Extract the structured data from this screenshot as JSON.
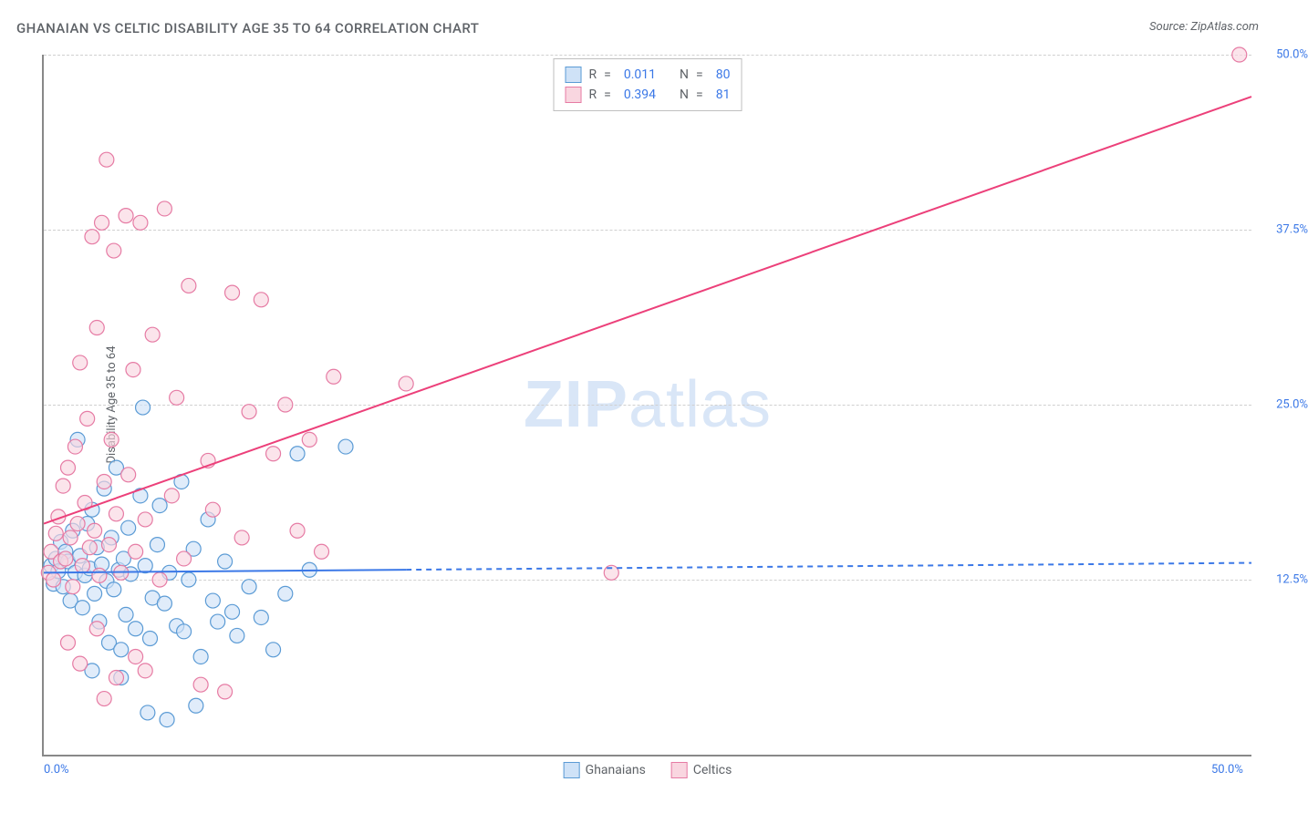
{
  "header": {
    "title": "GHANAIAN VS CELTIC DISABILITY AGE 35 TO 64 CORRELATION CHART",
    "source": "Source: ZipAtlas.com"
  },
  "chart": {
    "type": "scatter",
    "ylabel": "Disability Age 35 to 64",
    "watermark": "ZIPatlas",
    "xlim": [
      0,
      50
    ],
    "ylim": [
      0,
      50
    ],
    "x_tick_labels": [
      {
        "value": 0,
        "label": "0.0%"
      },
      {
        "value": 50,
        "label": "50.0%"
      }
    ],
    "y_tick_labels": [
      {
        "value": 12.5,
        "label": "12.5%"
      },
      {
        "value": 25.0,
        "label": "25.0%"
      },
      {
        "value": 37.5,
        "label": "37.5%"
      },
      {
        "value": 50.0,
        "label": "50.0%"
      }
    ],
    "gridlines_y": [
      12.5,
      25.0,
      37.5,
      50.0
    ],
    "series": [
      {
        "name": "Ghanaians",
        "fill_color": "#cfe2f7",
        "stroke_color": "#5b9bd5",
        "marker_radius": 8,
        "marker_fill_opacity": 0.65,
        "line_color": "#3b78e7",
        "line_width": 2,
        "solid_end_x": 15,
        "trendline": {
          "y0": 13.0,
          "y50": 13.7
        },
        "R": "0.011",
        "N": "80",
        "points": [
          [
            0.3,
            13.5
          ],
          [
            0.4,
            12.2
          ],
          [
            0.5,
            14.0
          ],
          [
            0.6,
            13.1
          ],
          [
            0.7,
            15.2
          ],
          [
            0.8,
            12.0
          ],
          [
            0.9,
            14.5
          ],
          [
            1.0,
            13.8
          ],
          [
            1.1,
            11.0
          ],
          [
            1.2,
            16.0
          ],
          [
            1.3,
            13.0
          ],
          [
            1.4,
            22.5
          ],
          [
            1.5,
            14.2
          ],
          [
            1.6,
            10.5
          ],
          [
            1.7,
            12.8
          ],
          [
            1.8,
            16.5
          ],
          [
            1.9,
            13.3
          ],
          [
            2.0,
            17.5
          ],
          [
            2.1,
            11.5
          ],
          [
            2.2,
            14.8
          ],
          [
            2.3,
            9.5
          ],
          [
            2.4,
            13.6
          ],
          [
            2.5,
            19.0
          ],
          [
            2.6,
            12.4
          ],
          [
            2.7,
            8.0
          ],
          [
            2.8,
            15.5
          ],
          [
            2.9,
            11.8
          ],
          [
            3.0,
            20.5
          ],
          [
            3.1,
            13.2
          ],
          [
            3.2,
            7.5
          ],
          [
            3.3,
            14.0
          ],
          [
            3.4,
            10.0
          ],
          [
            3.5,
            16.2
          ],
          [
            3.6,
            12.9
          ],
          [
            3.8,
            9.0
          ],
          [
            4.0,
            18.5
          ],
          [
            4.1,
            24.8
          ],
          [
            4.2,
            13.5
          ],
          [
            4.4,
            8.3
          ],
          [
            4.5,
            11.2
          ],
          [
            4.7,
            15.0
          ],
          [
            4.8,
            17.8
          ],
          [
            5.0,
            10.8
          ],
          [
            5.2,
            13.0
          ],
          [
            5.5,
            9.2
          ],
          [
            5.7,
            19.5
          ],
          [
            5.8,
            8.8
          ],
          [
            6.0,
            12.5
          ],
          [
            6.2,
            14.7
          ],
          [
            6.5,
            7.0
          ],
          [
            6.8,
            16.8
          ],
          [
            7.0,
            11.0
          ],
          [
            7.2,
            9.5
          ],
          [
            7.5,
            13.8
          ],
          [
            7.8,
            10.2
          ],
          [
            8.0,
            8.5
          ],
          [
            8.5,
            12.0
          ],
          [
            9.0,
            9.8
          ],
          [
            9.5,
            7.5
          ],
          [
            10.0,
            11.5
          ],
          [
            10.5,
            21.5
          ],
          [
            11.0,
            13.2
          ],
          [
            12.5,
            22.0
          ],
          [
            4.3,
            3.0
          ],
          [
            5.1,
            2.5
          ],
          [
            2.0,
            6.0
          ],
          [
            3.2,
            5.5
          ],
          [
            6.3,
            3.5
          ]
        ]
      },
      {
        "name": "Celtics",
        "fill_color": "#f9d6e0",
        "stroke_color": "#e67ba4",
        "marker_radius": 8,
        "marker_fill_opacity": 0.65,
        "line_color": "#ec407a",
        "line_width": 2,
        "solid_end_x": 50,
        "trendline": {
          "y0": 16.5,
          "y50": 47.0
        },
        "R": "0.394",
        "N": "81",
        "points": [
          [
            0.2,
            13.0
          ],
          [
            0.3,
            14.5
          ],
          [
            0.4,
            12.5
          ],
          [
            0.5,
            15.8
          ],
          [
            0.6,
            17.0
          ],
          [
            0.7,
            13.8
          ],
          [
            0.8,
            19.2
          ],
          [
            0.9,
            14.0
          ],
          [
            1.0,
            20.5
          ],
          [
            1.1,
            15.5
          ],
          [
            1.2,
            12.0
          ],
          [
            1.3,
            22.0
          ],
          [
            1.4,
            16.5
          ],
          [
            1.5,
            28.0
          ],
          [
            1.6,
            13.5
          ],
          [
            1.7,
            18.0
          ],
          [
            1.8,
            24.0
          ],
          [
            1.9,
            14.8
          ],
          [
            2.0,
            37.0
          ],
          [
            2.1,
            16.0
          ],
          [
            2.2,
            30.5
          ],
          [
            2.3,
            12.8
          ],
          [
            2.4,
            38.0
          ],
          [
            2.5,
            19.5
          ],
          [
            2.6,
            42.5
          ],
          [
            2.7,
            15.0
          ],
          [
            2.8,
            22.5
          ],
          [
            2.9,
            36.0
          ],
          [
            3.0,
            17.2
          ],
          [
            3.2,
            13.0
          ],
          [
            3.4,
            38.5
          ],
          [
            3.5,
            20.0
          ],
          [
            3.7,
            27.5
          ],
          [
            3.8,
            14.5
          ],
          [
            4.0,
            38.0
          ],
          [
            4.2,
            16.8
          ],
          [
            4.5,
            30.0
          ],
          [
            4.8,
            12.5
          ],
          [
            5.0,
            39.0
          ],
          [
            5.3,
            18.5
          ],
          [
            5.5,
            25.5
          ],
          [
            5.8,
            14.0
          ],
          [
            6.0,
            33.5
          ],
          [
            6.5,
            5.0
          ],
          [
            6.8,
            21.0
          ],
          [
            7.0,
            17.5
          ],
          [
            7.5,
            4.5
          ],
          [
            7.8,
            33.0
          ],
          [
            8.2,
            15.5
          ],
          [
            8.5,
            24.5
          ],
          [
            9.0,
            32.5
          ],
          [
            9.5,
            21.5
          ],
          [
            10.0,
            25.0
          ],
          [
            10.5,
            16.0
          ],
          [
            11.0,
            22.5
          ],
          [
            11.5,
            14.5
          ],
          [
            12.0,
            27.0
          ],
          [
            15.0,
            26.5
          ],
          [
            23.5,
            13.0
          ],
          [
            49.5,
            50.0
          ],
          [
            1.0,
            8.0
          ],
          [
            1.5,
            6.5
          ],
          [
            2.2,
            9.0
          ],
          [
            3.0,
            5.5
          ],
          [
            3.8,
            7.0
          ],
          [
            2.5,
            4.0
          ],
          [
            4.2,
            6.0
          ]
        ]
      }
    ],
    "bottom_legend": [
      {
        "label": "Ghanaians",
        "fill": "#cfe2f7",
        "stroke": "#5b9bd5"
      },
      {
        "label": "Celtics",
        "fill": "#f9d6e0",
        "stroke": "#e67ba4"
      }
    ],
    "stat_box_labels": {
      "R": "R",
      "eq": "=",
      "N": "N"
    },
    "background_color": "#ffffff",
    "grid_color": "#d0d0d0",
    "axis_color": "#888888",
    "tick_label_color": "#3b78e7",
    "text_color": "#5f6368"
  }
}
